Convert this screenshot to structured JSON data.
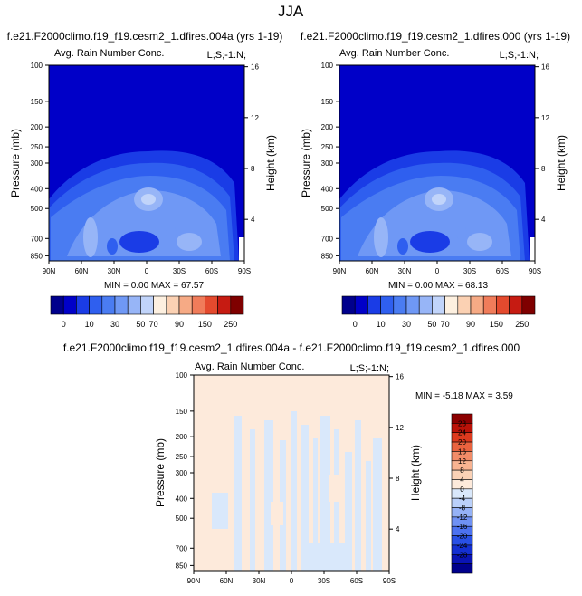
{
  "page_title": "JJA",
  "panels": [
    {
      "heading": "f.e21.F2000climo.f19_f19.cesm2_1.dfires.004a (yrs 1-19)",
      "subtitle": "Avg. Rain Number Conc.",
      "corner_label": "L;S;-1:N;",
      "stats": "MIN =  0.00  MAX =  67.57"
    },
    {
      "heading": "f.e21.F2000climo.f19_f19.cesm2_1.dfires.000 (yrs 1-19)",
      "subtitle": "Avg. Rain Number Conc.",
      "corner_label": "L;S;-1:N;",
      "stats": "MIN =  0.00  MAX =  68.13"
    },
    {
      "heading": "f.e21.F2000climo.f19_f19.cesm2_1.dfires.004a - f.e21.F2000climo.f19_f19.cesm2_1.dfires.000",
      "subtitle": "Avg. Rain Number Conc.",
      "corner_label": "L;S;-1:N;",
      "stats": "MIN = -5.18  MAX =  3.59"
    }
  ],
  "colors": {
    "abs_scale": [
      "#00008c",
      "#0000c8",
      "#1a3ce6",
      "#2f5fef",
      "#4a7cf2",
      "#6f98f5",
      "#97b5f7",
      "#c1d4fa",
      "#fdf0e0",
      "#fbd1b3",
      "#f6aa85",
      "#f07c5a",
      "#e44a2e",
      "#c61b12",
      "#7f0000"
    ],
    "diff_scale": [
      "#00008c",
      "#0a14b4",
      "#1430d2",
      "#2850e6",
      "#4c72f0",
      "#6f91f4",
      "#95b2f7",
      "#bad0fa",
      "#d9e8fb",
      "#fdeadb",
      "#fbd2b6",
      "#f8b391",
      "#f28c68",
      "#e9633f",
      "#dd3a1e",
      "#bb1208",
      "#8c0000"
    ]
  },
  "chart_data": [
    {
      "type": "heatmap",
      "title": "Avg. Rain Number Conc.",
      "ylabel": "Pressure (mb)",
      "y2label": "Height (km)",
      "x_ticks": [
        "90N",
        "60N",
        "30N",
        "0",
        "30S",
        "60S",
        "90S"
      ],
      "y_ticks": [
        100,
        150,
        200,
        250,
        300,
        400,
        500,
        700,
        850
      ],
      "y2_ticks": [
        16,
        12,
        8,
        4
      ],
      "xlim": [
        90,
        -90
      ],
      "ylim": [
        1000,
        100
      ],
      "ylog": true,
      "colorbar_labels": [
        "0",
        "10",
        "30",
        "50",
        "70",
        "90",
        "150",
        "250"
      ],
      "min": 0.0,
      "max": 67.57
    },
    {
      "type": "heatmap",
      "title": "Avg. Rain Number Conc.",
      "ylabel": "Pressure (mb)",
      "y2label": "Height (km)",
      "x_ticks": [
        "90N",
        "60N",
        "30N",
        "0",
        "30S",
        "60S",
        "90S"
      ],
      "y_ticks": [
        100,
        150,
        200,
        250,
        300,
        400,
        500,
        700,
        850
      ],
      "y2_ticks": [
        16,
        12,
        8,
        4
      ],
      "xlim": [
        90,
        -90
      ],
      "ylim": [
        1000,
        100
      ],
      "ylog": true,
      "colorbar_labels": [
        "0",
        "10",
        "30",
        "50",
        "70",
        "90",
        "150",
        "250"
      ],
      "min": 0.0,
      "max": 68.13
    },
    {
      "type": "heatmap",
      "title": "Avg. Rain Number Conc.",
      "ylabel": "Pressure (mb)",
      "y2label": "Height (km)",
      "x_ticks": [
        "90N",
        "60N",
        "30N",
        "0",
        "30S",
        "60S",
        "90S"
      ],
      "y_ticks": [
        100,
        150,
        200,
        250,
        300,
        400,
        500,
        700,
        850
      ],
      "y2_ticks": [
        16,
        12,
        8,
        4
      ],
      "xlim": [
        90,
        -90
      ],
      "ylim": [
        1000,
        100
      ],
      "ylog": true,
      "colorbar_labels": [
        "28",
        "24",
        "20",
        "16",
        "12",
        "8",
        "4",
        "0",
        "-4",
        "-8",
        "-12",
        "-16",
        "-20",
        "-24",
        "-28"
      ],
      "min": -5.18,
      "max": 3.59
    }
  ]
}
